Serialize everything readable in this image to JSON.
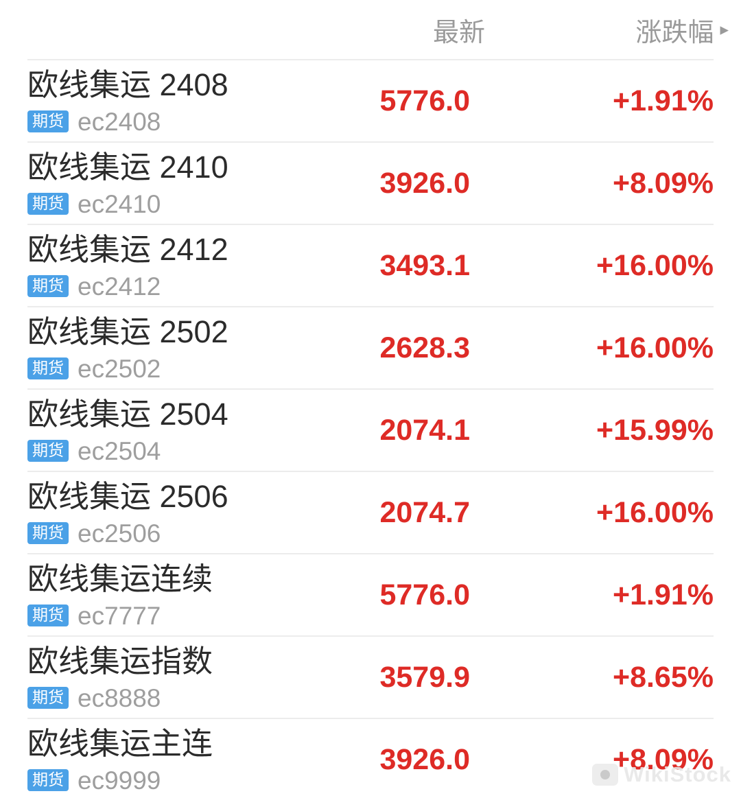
{
  "header": {
    "latest_label": "最新",
    "change_label": "涨跌幅",
    "sort_icon": "▸"
  },
  "badge_label": "期货",
  "colors": {
    "up_red": "#de2b26",
    "badge_blue": "#4ba1e7",
    "muted_gray": "#9a9a9a",
    "title_dark": "#2b2b2b",
    "divider": "#ececec"
  },
  "watermark": {
    "text": "WikiStock"
  },
  "rows": [
    {
      "name": "欧线集运 2408",
      "code": "ec2408",
      "last": "5776.0",
      "change": "+1.91%"
    },
    {
      "name": "欧线集运 2410",
      "code": "ec2410",
      "last": "3926.0",
      "change": "+8.09%"
    },
    {
      "name": "欧线集运 2412",
      "code": "ec2412",
      "last": "3493.1",
      "change": "+16.00%"
    },
    {
      "name": "欧线集运 2502",
      "code": "ec2502",
      "last": "2628.3",
      "change": "+16.00%"
    },
    {
      "name": "欧线集运 2504",
      "code": "ec2504",
      "last": "2074.1",
      "change": "+15.99%"
    },
    {
      "name": "欧线集运 2506",
      "code": "ec2506",
      "last": "2074.7",
      "change": "+16.00%"
    },
    {
      "name": "欧线集运连续",
      "code": "ec7777",
      "last": "5776.0",
      "change": "+1.91%"
    },
    {
      "name": "欧线集运指数",
      "code": "ec8888",
      "last": "3579.9",
      "change": "+8.65%"
    },
    {
      "name": "欧线集运主连",
      "code": "ec9999",
      "last": "3926.0",
      "change": "+8.09%"
    }
  ]
}
